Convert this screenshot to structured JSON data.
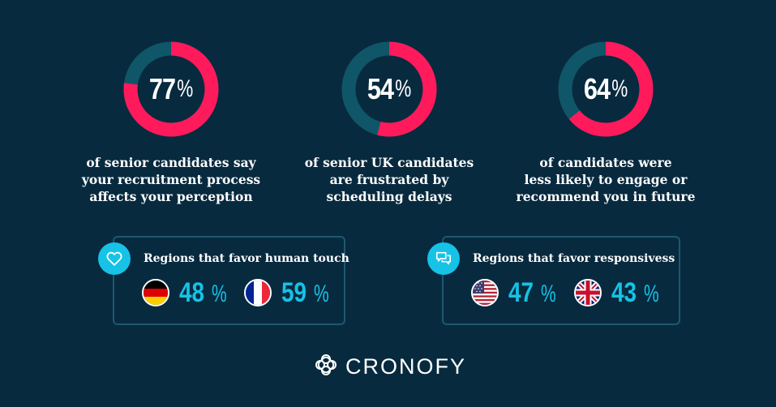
{
  "colors": {
    "background": "#082a3f",
    "accent_pink": "#ff1a5c",
    "track_teal": "#0f5668",
    "accent_cyan": "#16c2e6",
    "box_border": "#1e5870"
  },
  "stats": [
    {
      "value": "77",
      "percent_symbol": "%",
      "fraction": 0.77,
      "lines": [
        "of senior candidates say",
        "your recruitment process",
        "affects your perception"
      ]
    },
    {
      "value": "54",
      "percent_symbol": "%",
      "fraction": 0.54,
      "lines": [
        "of senior UK candidates",
        "are frustrated by",
        "scheduling delays"
      ]
    },
    {
      "value": "64",
      "percent_symbol": "%",
      "fraction": 0.64,
      "lines": [
        "of candidates were",
        "less likely to engage or",
        "recommend you in future"
      ]
    }
  ],
  "regions": [
    {
      "icon": "heart-icon",
      "title": "Regions that favor human touch",
      "items": [
        {
          "flag": "germany-flag-icon",
          "value": "48",
          "percent_symbol": "%"
        },
        {
          "flag": "france-flag-icon",
          "value": "59",
          "percent_symbol": "%"
        }
      ]
    },
    {
      "icon": "chat-bubbles-icon",
      "title": "Regions that favor responsivess",
      "items": [
        {
          "flag": "usa-flag-icon",
          "value": "47",
          "percent_symbol": "%"
        },
        {
          "flag": "uk-flag-icon",
          "value": "43",
          "percent_symbol": "%"
        }
      ]
    }
  ],
  "brand": {
    "name": "CRONOFY",
    "icon": "cronofy-logo-icon"
  }
}
